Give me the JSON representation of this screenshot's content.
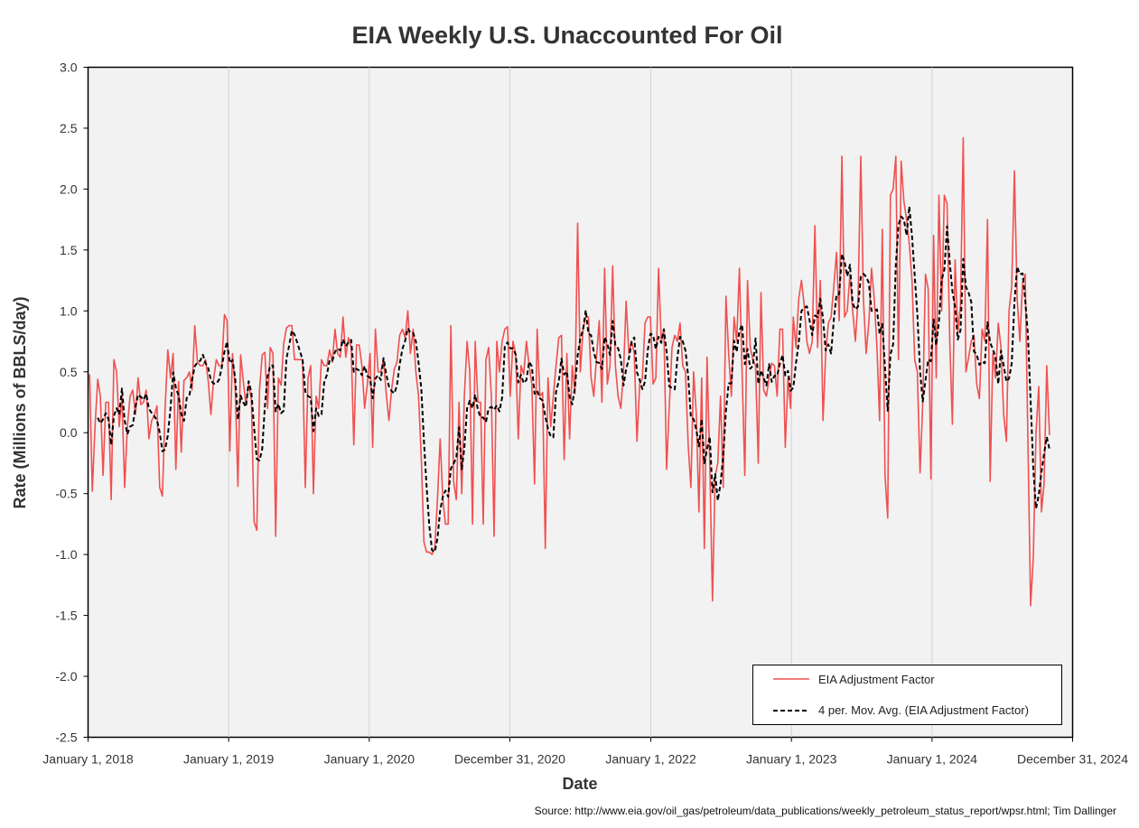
{
  "chart_data": {
    "type": "line",
    "title": "EIA Weekly U.S. Unaccounted For Oil",
    "xlabel": "Date",
    "ylabel": "Rate (Millions of BBLS/day)",
    "source": "Source: http://www.eia.gov/oil_gas/petroleum/data_publications/weekly_petroleum_status_report/wpsr.html; Tim Dallinger",
    "xlim": [
      "2018-01-01",
      "2024-12-31"
    ],
    "ylim": [
      -2.5,
      3.0
    ],
    "x_ticks": [
      "2018-01-01",
      "2019-01-01",
      "2020-01-01",
      "2020-12-31",
      "2022-01-01",
      "2023-01-01",
      "2024-01-01",
      "2024-12-31"
    ],
    "x_tick_labels": [
      "January 1, 2018",
      "January 1, 2019",
      "January 1, 2020",
      "December 31, 2020",
      "January 1, 2022",
      "January 1, 2023",
      "January 1, 2024",
      "December 31, 2024"
    ],
    "y_ticks": [
      -2.5,
      -2.0,
      -1.5,
      -1.0,
      -0.5,
      0.0,
      0.5,
      1.0,
      1.5,
      2.0,
      2.5,
      3.0
    ],
    "y_tick_labels": [
      "-2.5",
      "-2.0",
      "-1.5",
      "-1.0",
      "-0.5",
      "0.0",
      "0.5",
      "1.0",
      "1.5",
      "2.0",
      "2.5",
      "3.0"
    ],
    "grid": "vertical",
    "legend_position": "bottom-right",
    "series": [
      {
        "name": "EIA Adjustment Factor",
        "color": "#f05050",
        "style": "solid",
        "x_start": "2018-01-05",
        "interval_days": 7,
        "values": [
          0.48,
          -0.48,
          0.05,
          0.44,
          0.3,
          -0.35,
          0.25,
          0.25,
          -0.55,
          0.6,
          0.5,
          0.05,
          0.3,
          -0.45,
          0.05,
          0.3,
          0.35,
          0.15,
          0.45,
          0.23,
          0.25,
          0.35,
          -0.05,
          0.1,
          0.14,
          0.22,
          -0.45,
          -0.52,
          0.2,
          0.68,
          0.45,
          0.65,
          -0.3,
          0.42,
          -0.16,
          0.43,
          0.45,
          0.5,
          0.35,
          0.88,
          0.58,
          0.55,
          0.55,
          0.6,
          0.42,
          0.15,
          0.44,
          0.6,
          0.55,
          0.55,
          0.97,
          0.92,
          -0.15,
          0.65,
          0.37,
          -0.44,
          0.64,
          0.42,
          0.23,
          0.4,
          0.27,
          -0.73,
          -0.8,
          0.35,
          0.64,
          0.66,
          0.2,
          0.7,
          0.65,
          -0.85,
          0.45,
          0.39,
          0.73,
          0.86,
          0.88,
          0.88,
          0.6,
          0.6,
          0.6,
          0.6,
          -0.45,
          0.45,
          0.55,
          -0.5,
          0.3,
          0.2,
          0.6,
          0.55,
          0.55,
          0.68,
          0.58,
          0.85,
          0.65,
          0.62,
          0.95,
          0.62,
          0.78,
          0.7,
          -0.1,
          0.72,
          0.72,
          0.55,
          0.2,
          0.4,
          0.65,
          -0.12,
          0.85,
          0.5,
          0.5,
          0.6,
          0.32,
          0.1,
          0.35,
          0.52,
          0.58,
          0.8,
          0.85,
          0.78,
          1.0,
          0.65,
          0.85,
          0.5,
          0.3,
          -0.2,
          -0.9,
          -0.98,
          -0.98,
          -1.0,
          -0.95,
          -0.55,
          -0.05,
          -0.55,
          -0.75,
          -0.75,
          0.88,
          -0.4,
          -0.55,
          0.25,
          -0.5,
          0.3,
          0.75,
          0.5,
          -0.75,
          0.75,
          0.25,
          0.25,
          -0.75,
          0.6,
          0.7,
          0.3,
          -0.85,
          0.75,
          0.5,
          0.75,
          0.85,
          0.87,
          0.3,
          0.75,
          0.65,
          -0.05,
          0.55,
          0.48,
          0.75,
          0.55,
          0.4,
          -0.42,
          0.85,
          0.3,
          0.33,
          -0.95,
          0.45,
          0.05,
          0.3,
          0.55,
          0.78,
          0.8,
          -0.22,
          0.65,
          -0.05,
          0.55,
          0.32,
          1.72,
          0.5,
          0.85,
          0.95,
          0.95,
          0.45,
          0.3,
          0.62,
          0.92,
          0.25,
          1.35,
          0.4,
          0.55,
          1.37,
          0.55,
          0.3,
          0.2,
          0.5,
          1.08,
          0.65,
          0.75,
          0.65,
          -0.07,
          0.4,
          0.45,
          0.9,
          0.95,
          0.95,
          0.4,
          0.45,
          1.35,
          0.75,
          0.85,
          -0.3,
          0.22,
          0.7,
          0.8,
          0.75,
          0.9,
          0.55,
          0.5,
          -0.1,
          -0.45,
          0.5,
          0.15,
          -0.65,
          0.45,
          -0.95,
          0.62,
          -0.25,
          -1.38,
          -0.35,
          -0.25,
          0.3,
          -0.45,
          1.12,
          0.65,
          0.3,
          0.95,
          0.75,
          1.35,
          0.5,
          -0.35,
          1.25,
          0.7,
          0.6,
          0.55,
          -0.25,
          1.15,
          0.35,
          0.3,
          0.45,
          0.57,
          0.55,
          0.3,
          0.85,
          0.85,
          -0.12,
          0.45,
          0.2,
          0.95,
          0.7,
          1.1,
          1.25,
          1.05,
          0.75,
          0.65,
          0.75,
          1.7,
          0.7,
          1.25,
          0.1,
          0.65,
          0.9,
          0.95,
          1.2,
          1.48,
          0.92,
          2.27,
          0.95,
          1.0,
          1.3,
          1.0,
          0.75,
          1.1,
          2.27,
          1.1,
          0.65,
          0.9,
          1.35,
          1.1,
          0.7,
          0.1,
          1.67,
          -0.35,
          -0.7,
          1.95,
          2.0,
          2.27,
          0.6,
          2.23,
          1.9,
          1.75,
          1.55,
          1.25,
          0.6,
          0.5,
          -0.33,
          0.25,
          1.3,
          1.18,
          -0.38,
          1.62,
          0.45,
          1.95,
          1.0,
          1.95,
          1.88,
          0.75,
          0.07,
          1.42,
          0.82,
          1.05,
          2.42,
          0.5,
          0.62,
          0.75,
          0.8,
          0.4,
          0.28,
          0.85,
          0.75,
          1.75,
          -0.4,
          0.65,
          0.45,
          0.9,
          0.7,
          0.15,
          -0.07,
          1.0,
          1.2,
          2.15,
          1.1,
          0.75,
          1.23,
          1.3,
          -0.05,
          -1.42,
          -1.02,
          0.0,
          0.38,
          -0.65,
          -0.42,
          0.55,
          -0.02
        ]
      },
      {
        "name": "4 per. Mov. Avg. (EIA Adjustment Factor)",
        "color": "#000000",
        "style": "dashed",
        "window": 4
      }
    ]
  }
}
